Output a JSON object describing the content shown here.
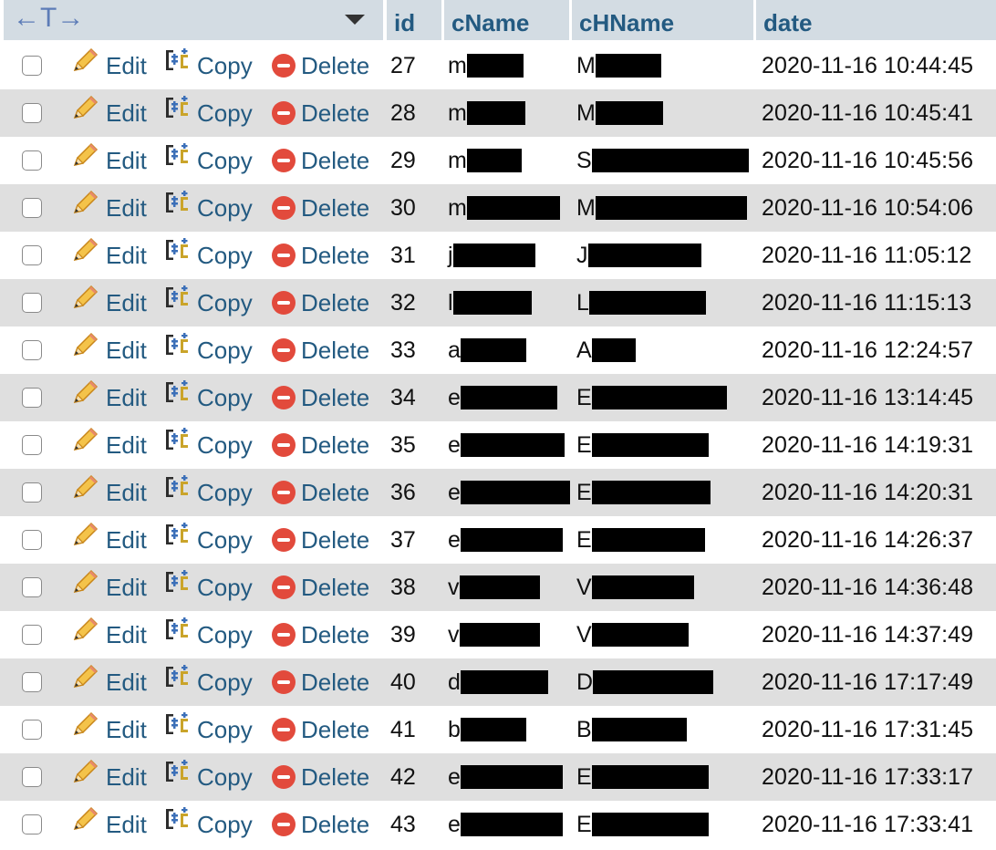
{
  "header": {
    "arrows_glyph": "←T→",
    "columns": [
      "id",
      "cName",
      "cHName",
      "date"
    ]
  },
  "actions": {
    "edit_label": "Edit",
    "copy_label": "Copy",
    "delete_label": "Delete"
  },
  "rows": [
    {
      "id": "27",
      "cName": "m",
      "cHName": "M",
      "date": "2020-11-16 10:44:45"
    },
    {
      "id": "28",
      "cName": "m",
      "cHName": "M",
      "date": "2020-11-16 10:45:41"
    },
    {
      "id": "29",
      "cName": "m",
      "cHName": "S",
      "date": "2020-11-16 10:45:56"
    },
    {
      "id": "30",
      "cName": "m",
      "cHName": "M",
      "date": "2020-11-16 10:54:06"
    },
    {
      "id": "31",
      "cName": "j",
      "cHName": "J",
      "date": "2020-11-16 11:05:12"
    },
    {
      "id": "32",
      "cName": "l",
      "cHName": "L",
      "date": "2020-11-16 11:15:13"
    },
    {
      "id": "33",
      "cName": "a",
      "cHName": "A",
      "date": "2020-11-16 12:24:57"
    },
    {
      "id": "34",
      "cName": "e",
      "cHName": "E",
      "date": "2020-11-16 13:14:45"
    },
    {
      "id": "35",
      "cName": "e",
      "cHName": "E",
      "date": "2020-11-16 14:19:31"
    },
    {
      "id": "36",
      "cName": "e",
      "cHName": "E",
      "date": "2020-11-16 14:20:31"
    },
    {
      "id": "37",
      "cName": "e",
      "cHName": "E",
      "date": "2020-11-16 14:26:37"
    },
    {
      "id": "38",
      "cName": "v",
      "cHName": "V",
      "date": "2020-11-16 14:36:48"
    },
    {
      "id": "39",
      "cName": "v",
      "cHName": "V",
      "date": "2020-11-16 14:37:49"
    },
    {
      "id": "40",
      "cName": "d",
      "cHName": "D",
      "date": "2020-11-16 17:17:49"
    },
    {
      "id": "41",
      "cName": "b",
      "cHName": "B",
      "date": "2020-11-16 17:31:45"
    },
    {
      "id": "42",
      "cName": "e",
      "cHName": "E",
      "date": "2020-11-16 17:33:17"
    },
    {
      "id": "43",
      "cName": "e",
      "cHName": "E",
      "date": "2020-11-16 17:33:41"
    }
  ],
  "colors": {
    "header_bg": "#d3dce3",
    "link": "#235a81",
    "row_alt_bg": "#dfdfdf",
    "delete_icon": "#e24a3c"
  },
  "icons": {
    "edit": "pencil-icon",
    "copy": "copy-icon",
    "delete": "delete-icon",
    "sort": "sort-down-icon"
  }
}
